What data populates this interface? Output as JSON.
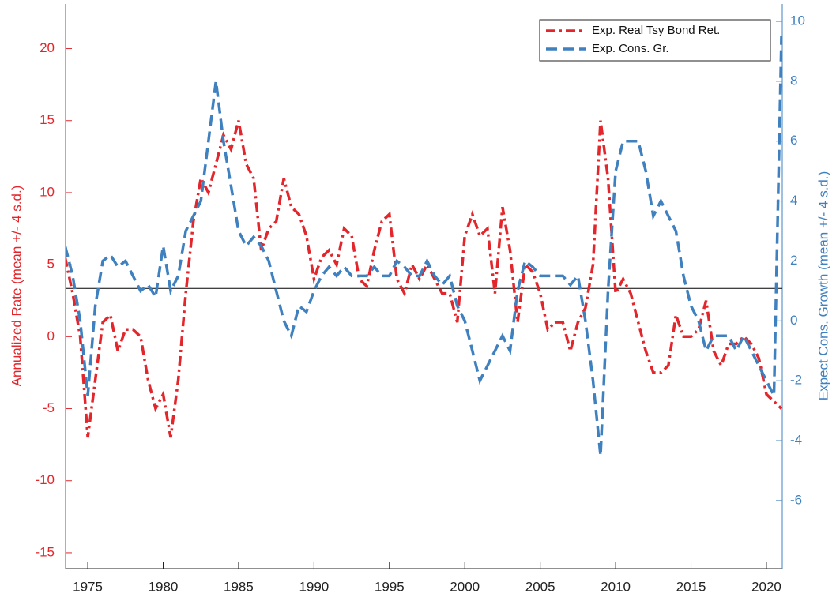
{
  "chart_data": {
    "type": "line",
    "x": [
      1973.5,
      1974,
      1974.5,
      1975,
      1975.5,
      1976,
      1976.5,
      1977,
      1977.5,
      1978,
      1978.5,
      1979,
      1979.5,
      1980,
      1980.5,
      1981,
      1981.5,
      1982,
      1982.5,
      1983,
      1983.5,
      1984,
      1984.5,
      1985,
      1985.5,
      1986,
      1986.5,
      1987,
      1987.5,
      1988,
      1988.5,
      1989,
      1989.5,
      1990,
      1990.5,
      1991,
      1991.5,
      1992,
      1992.5,
      1993,
      1993.5,
      1994,
      1994.5,
      1995,
      1995.5,
      1996,
      1996.5,
      1997,
      1997.5,
      1998,
      1998.5,
      1999,
      1999.5,
      2000,
      2000.5,
      2001,
      2001.5,
      2002,
      2002.5,
      2003,
      2003.5,
      2004,
      2004.5,
      2005,
      2005.5,
      2006,
      2006.5,
      2007,
      2007.5,
      2008,
      2008.5,
      2009,
      2009.5,
      2010,
      2010.5,
      2011,
      2011.5,
      2012,
      2012.5,
      2013,
      2013.5,
      2014,
      2014.5,
      2015,
      2015.5,
      2016,
      2016.5,
      2017,
      2017.5,
      2018,
      2018.5,
      2019,
      2019.5,
      2020,
      2020.5,
      2021
    ],
    "series": [
      {
        "name": "Exp. Real Tsy Bond Ret.",
        "color": "#e3262b",
        "axis": "y",
        "dash": "12 5 3 5",
        "values": [
          5.5,
          3,
          0,
          -7,
          -3,
          1,
          1.5,
          -1,
          0.5,
          0.5,
          0,
          -3,
          -5,
          -4,
          -7,
          -3,
          3,
          8,
          11,
          10,
          12,
          14,
          13,
          15,
          12,
          11,
          6,
          7.5,
          8,
          11,
          9,
          8.5,
          7,
          4,
          5.5,
          6,
          5,
          7.5,
          7,
          4,
          3.5,
          6,
          8,
          8.5,
          4,
          3,
          5,
          4,
          5,
          4,
          3,
          3,
          1,
          7,
          8.5,
          7,
          7.5,
          3,
          9,
          6,
          1,
          5,
          4.5,
          3,
          0.5,
          1,
          1,
          -1,
          1,
          2,
          5,
          15,
          11,
          3,
          4,
          3,
          1,
          -1,
          -2.5,
          -2.5,
          -2,
          1.5,
          0,
          0,
          0.5,
          2.5,
          -1,
          -2,
          -0.5,
          -0.5,
          0,
          -0.5,
          -1.5,
          -4,
          -4.5,
          -5
        ]
      },
      {
        "name": "Exp. Cons. Gr.",
        "color": "#3f80bf",
        "axis": "y2",
        "dash": "14 7",
        "values": [
          2.5,
          1.5,
          0,
          -2.5,
          0.5,
          2,
          2.2,
          1.8,
          2,
          1.5,
          1,
          1.2,
          0.8,
          2.5,
          1,
          1.5,
          3,
          3.5,
          4,
          6,
          8,
          6,
          4.5,
          3,
          2.5,
          2.8,
          2.5,
          2,
          1,
          0,
          -0.5,
          0.5,
          0.3,
          1,
          1.5,
          1.8,
          1.5,
          1.8,
          1.5,
          1.5,
          1.5,
          1.8,
          1.5,
          1.5,
          2,
          1.8,
          1.5,
          1.5,
          2,
          1.5,
          1.2,
          1.5,
          0.5,
          0,
          -1,
          -2,
          -1.5,
          -1,
          -0.5,
          -1,
          1,
          2,
          1.8,
          1.5,
          1.5,
          1.5,
          1.5,
          1.2,
          1.5,
          0,
          -2,
          -4.5,
          1,
          5,
          6,
          6,
          6,
          5,
          3.5,
          4,
          3.5,
          3,
          1.5,
          0.5,
          0,
          -1,
          -0.5,
          -0.5,
          -0.5,
          -1,
          -0.5,
          -1,
          -1.5,
          -2,
          -2.5,
          9.5
        ]
      }
    ],
    "ylabel": "Annualized Rate (mean +/- 4 s.d.)",
    "y2label": "Expect Cons. Growth (mean +/- 4 s.d.)",
    "xlim": [
      1973.53,
      2021.05
    ],
    "xticks": [
      1975,
      1980,
      1985,
      1990,
      1995,
      2000,
      2005,
      2010,
      2015,
      2020
    ],
    "ylim": [
      -16.1,
      23.1
    ],
    "yticks": [
      -15,
      -10,
      -5,
      0,
      5,
      10,
      15,
      20
    ],
    "y2lim": [
      -8.27,
      10.58
    ],
    "y2ticks": [
      -6,
      -4,
      -2,
      0,
      2,
      4,
      6,
      8,
      10
    ],
    "reference_line": 3.35,
    "legend": "upper right",
    "grid": false
  }
}
